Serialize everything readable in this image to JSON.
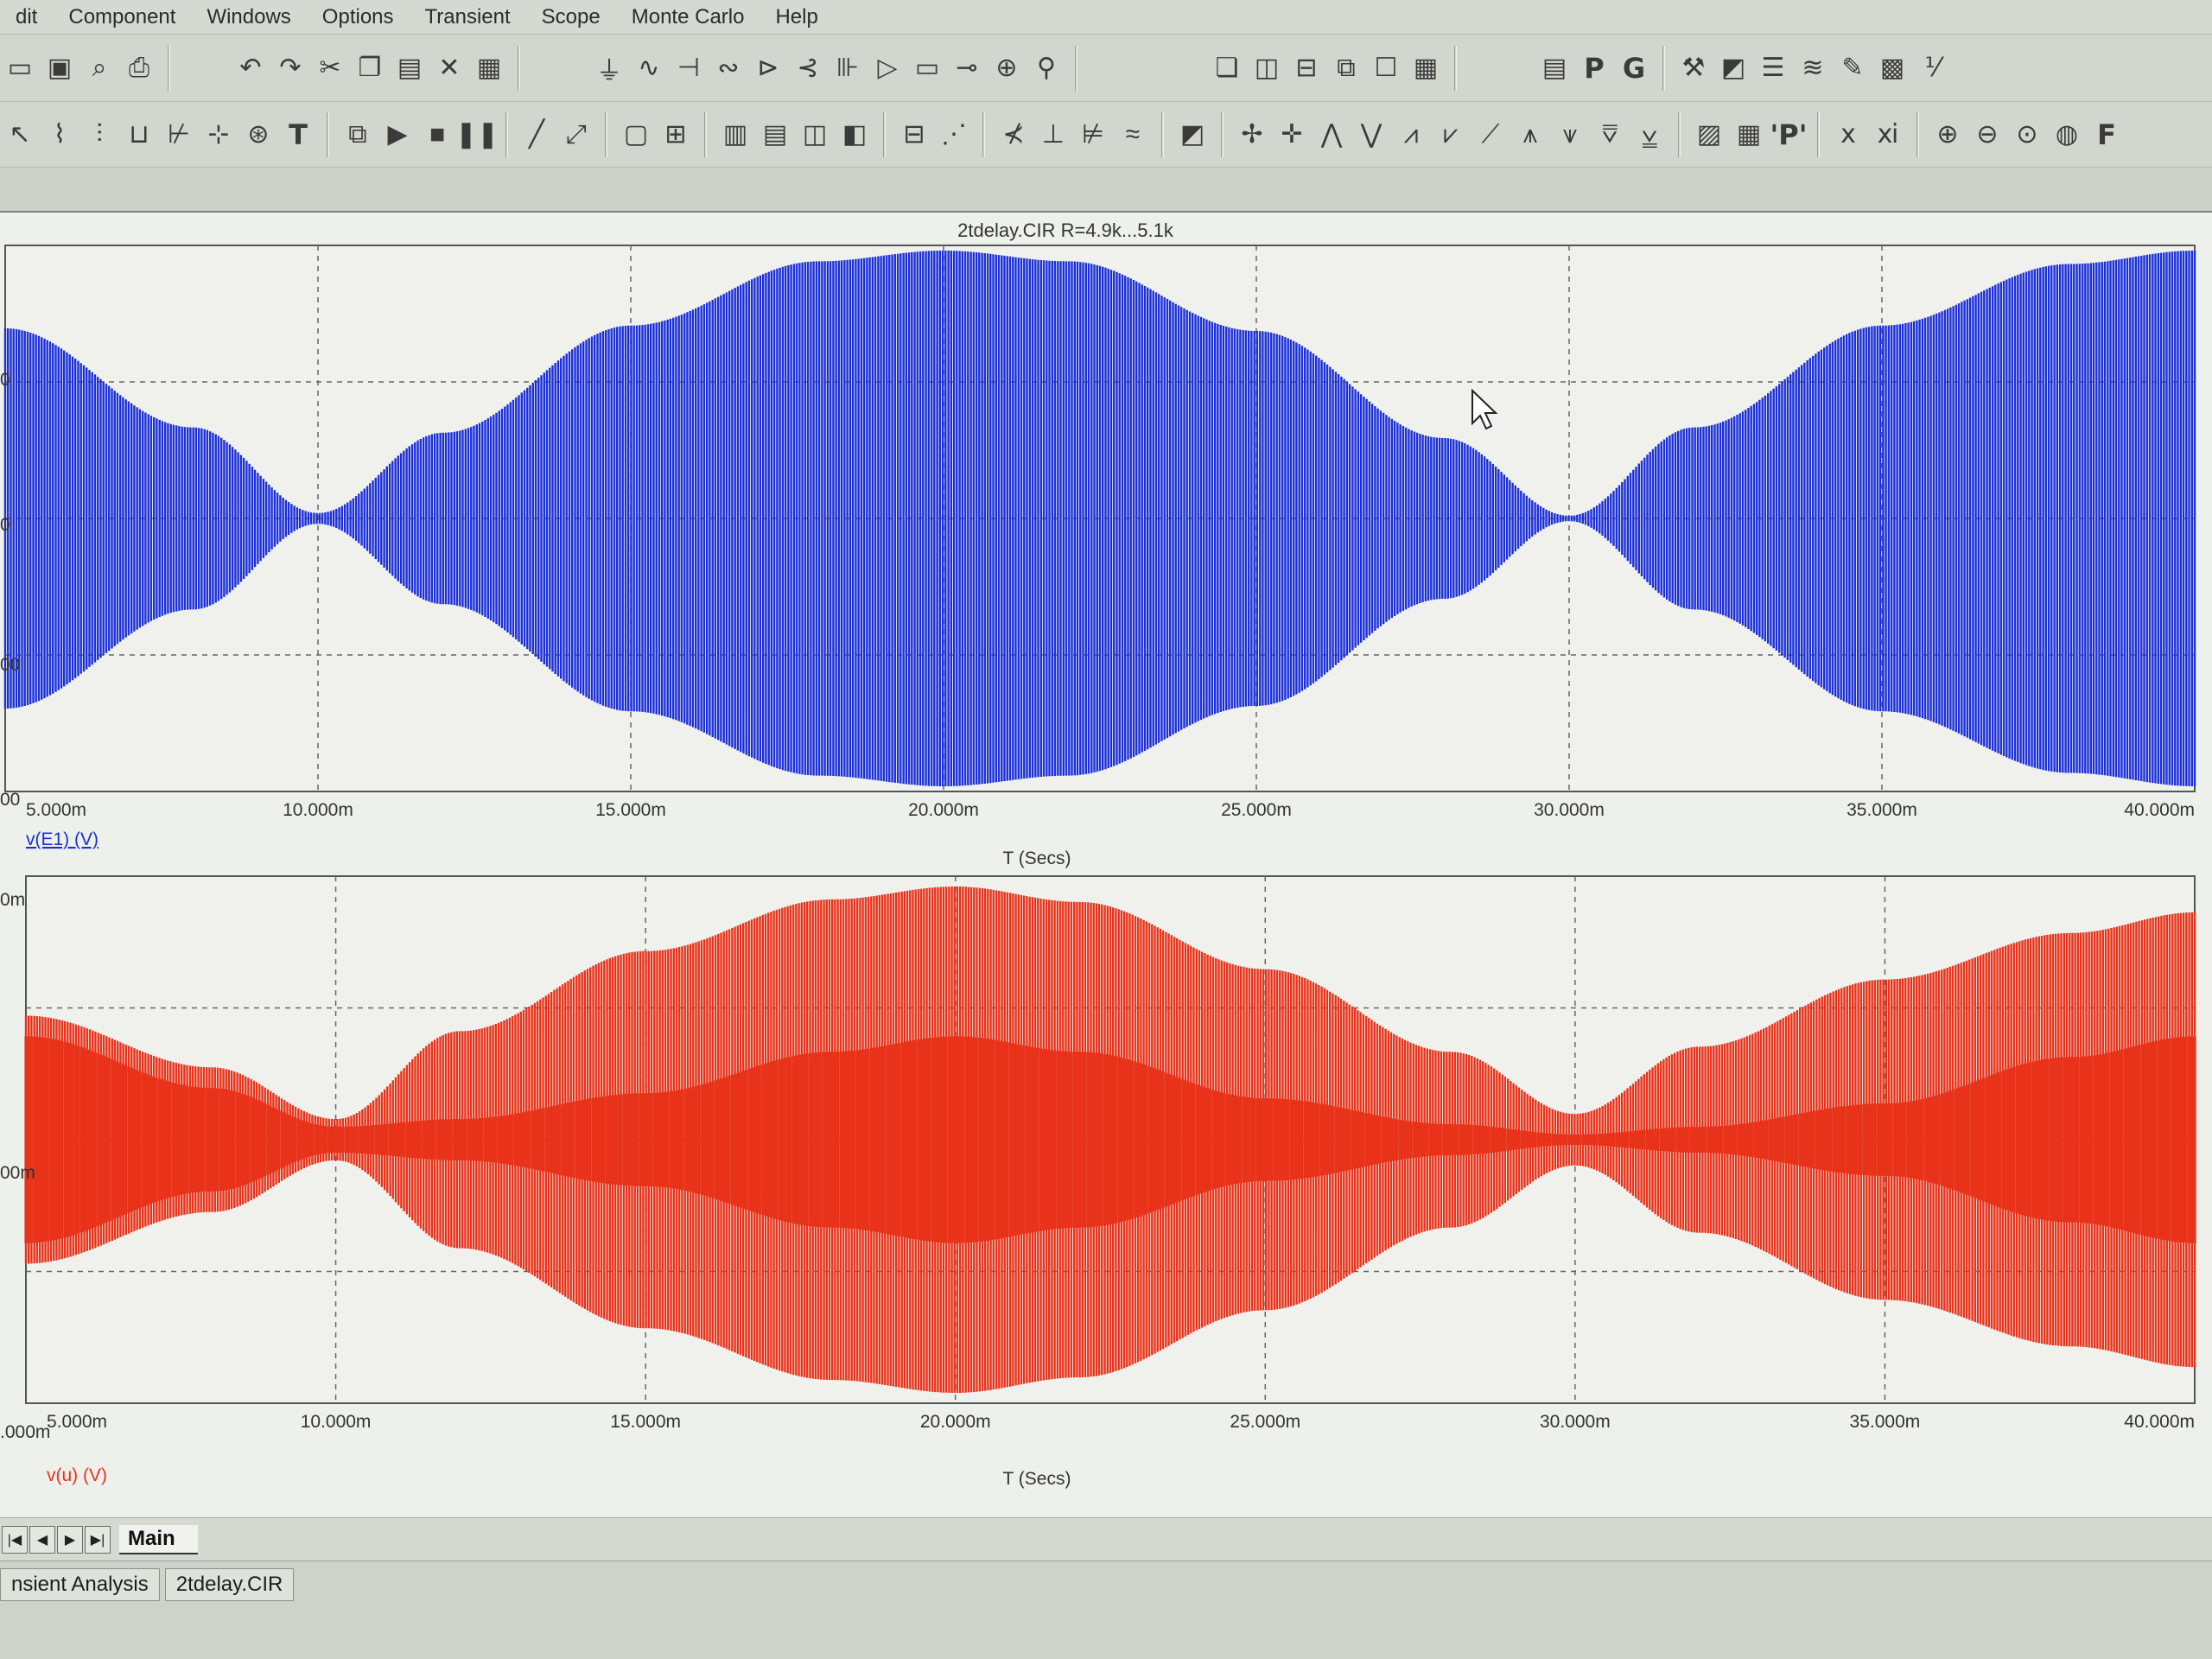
{
  "menu": [
    "dit",
    "Component",
    "Windows",
    "Options",
    "Transient",
    "Scope",
    "Monte Carlo",
    "Help"
  ],
  "toolbar1_icons": [
    "new-file-icon",
    "save-icon",
    "print-preview-icon",
    "print-icon",
    "undo-icon",
    "redo-icon",
    "cut-icon",
    "copy-icon",
    "paste-icon",
    "delete-icon",
    "select-all-icon",
    "ground-icon",
    "resistor-icon",
    "capacitor-icon",
    "inductor-icon",
    "diode-icon",
    "transistor-icon",
    "battery-icon",
    "opamp-icon",
    "component-icon",
    "wire-icon",
    "node-icon",
    "probe-icon",
    "cascade-windows-icon",
    "tile-vertical-icon",
    "tile-horizontal-icon",
    "window-icon",
    "window-icon",
    "calculator-icon",
    "page-icon",
    "text-letter-p-icon",
    "text-letter-g-icon",
    "edit-tool-icon",
    "chart-tool-icon",
    "stack-icon",
    "wave-icon",
    "pen-icon",
    "plot-properties-icon",
    "scale-icon"
  ],
  "toolbar1_letters": {
    "p": "P",
    "g": "G"
  },
  "toolbar2_icons": [
    "select-arrow-icon",
    "curve-icon",
    "hist-icon",
    "step-icon",
    "transfer-icon",
    "tree-icon",
    "text-tool-icon",
    "properties-icon",
    "run-icon",
    "stop-icon",
    "pause-icon",
    "line-icon",
    "diagonal-line-icon",
    "box-icon",
    "grid-icon",
    "bold-grid-icon",
    "minor-grid-icon",
    "vert-grid-icon",
    "horiz-grid-icon",
    "axis-icon",
    "cursor-mode-icon",
    "peak-icon",
    "valley-icon",
    "high-icon",
    "low-icon",
    "inflection-icon",
    "slope-icon",
    "cursor-left-icon",
    "cursor-right-icon",
    "next-peak-icon",
    "next-valley-icon",
    "next-high-icon",
    "next-low-icon",
    "next-inflection-icon",
    "up-arrow-icon",
    "down-arrow-icon",
    "multi-icon",
    "sensor-icon",
    "table-icon",
    "probe-letter-icon",
    "x-cursor-icon",
    "y-cursor-icon",
    "zoom-in-icon",
    "zoom-out-icon",
    "zoom-fit-icon",
    "globe-icon",
    "font-letter-icon"
  ],
  "toolbar2_letters": {
    "t": "T",
    "p": "'P'",
    "f": "F"
  },
  "chart_data": [
    {
      "type": "line",
      "title": "2tdelay.CIR R=4.9k...5.1k",
      "xlabel": "T (Secs)",
      "ylabel": "v(E1) (V)",
      "x_ticks": [
        "5.000m",
        "10.000m",
        "15.000m",
        "20.000m",
        "25.000m",
        "30.000m",
        "35.000m",
        "40.000m"
      ],
      "y_ticks": [
        "",
        "",
        "0",
        "",
        ""
      ],
      "y_tick_labels_visible": [
        "",
        "0",
        "0",
        "00"
      ],
      "xlim": [
        5,
        40
      ],
      "grid": true,
      "series": [
        {
          "color": "#1b2fd8",
          "envelope": {
            "x": [
              5,
              8,
              10,
              12,
              15,
              18,
              20,
              22,
              25,
              28,
              30,
              32,
              35,
              38,
              40
            ],
            "amplitude": [
              0.71,
              0.34,
              0.02,
              0.32,
              0.72,
              0.96,
              1.0,
              0.96,
              0.7,
              0.3,
              0.01,
              0.34,
              0.72,
              0.95,
              1.0
            ]
          }
        }
      ]
    },
    {
      "type": "line",
      "title": "",
      "xlabel": "T (Secs)",
      "ylabel": "v(u) (V)",
      "x_ticks": [
        "5.000m",
        "10.000m",
        "15.000m",
        "20.000m",
        "25.000m",
        "30.000m",
        "35.000m",
        "40.000m"
      ],
      "y_tick_labels_visible": [
        "0m",
        "00m",
        ".000m"
      ],
      "xlim": [
        5,
        40
      ],
      "grid": true,
      "series": [
        {
          "color": "#e8321a",
          "envelope": {
            "x": [
              5,
              8,
              10,
              12,
              15,
              18,
              20,
              22,
              25,
              28,
              30,
              32,
              35,
              38,
              40
            ],
            "amplitude": [
              0.48,
              0.28,
              0.08,
              0.42,
              0.73,
              0.93,
              0.98,
              0.92,
              0.66,
              0.34,
              0.1,
              0.36,
              0.62,
              0.8,
              0.88
            ]
          }
        },
        {
          "color": "#e8321a",
          "envelope": {
            "x": [
              5,
              8,
              10,
              12,
              15,
              18,
              20,
              22,
              25,
              28,
              30,
              32,
              35,
              38,
              40
            ],
            "amplitude": [
              0.4,
              0.2,
              0.05,
              0.08,
              0.18,
              0.34,
              0.4,
              0.34,
              0.16,
              0.06,
              0.02,
              0.05,
              0.14,
              0.32,
              0.4
            ]
          }
        }
      ]
    }
  ],
  "sheet_tabs": {
    "main": "Main",
    "nav": [
      "|◀",
      "◀",
      "▶",
      "▶|"
    ]
  },
  "status": {
    "analysis": "nsient Analysis",
    "file": "2tdelay.CIR"
  }
}
